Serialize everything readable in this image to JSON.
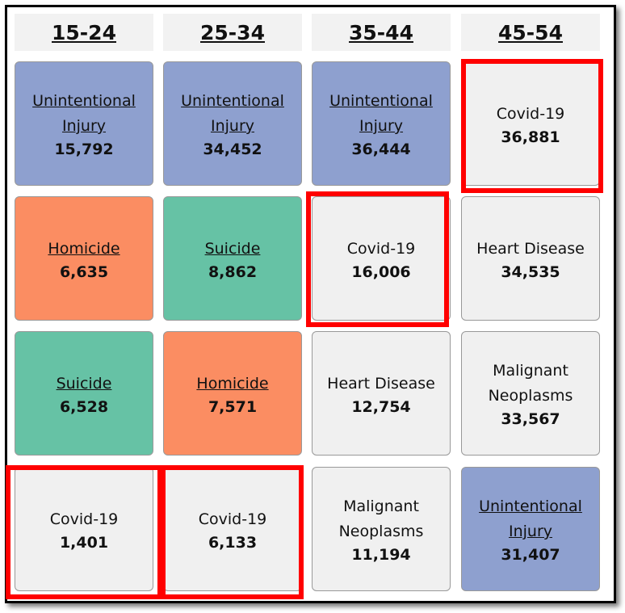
{
  "colors": {
    "Unintentional Injury": "#8ea0cf",
    "Homicide": "#fb8d62",
    "Suicide": "#66c2a5",
    "default": "#f0f0f0"
  },
  "chart_data": {
    "type": "table",
    "columns": [
      "15-24",
      "25-34",
      "35-44",
      "45-54"
    ],
    "rows": [
      [
        {
          "cause": "Unintentional Injury",
          "count": "15,792",
          "link": true,
          "highlight": false
        },
        {
          "cause": "Unintentional Injury",
          "count": "34,452",
          "link": true,
          "highlight": false
        },
        {
          "cause": "Unintentional Injury",
          "count": "36,444",
          "link": true,
          "highlight": false
        },
        {
          "cause": "Covid-19",
          "count": "36,881",
          "link": false,
          "highlight": true
        }
      ],
      [
        {
          "cause": "Homicide",
          "count": "6,635",
          "link": true,
          "highlight": false
        },
        {
          "cause": "Suicide",
          "count": "8,862",
          "link": true,
          "highlight": false
        },
        {
          "cause": "Covid-19",
          "count": "16,006",
          "link": false,
          "highlight": true
        },
        {
          "cause": "Heart Disease",
          "count": "34,535",
          "link": false,
          "highlight": false
        }
      ],
      [
        {
          "cause": "Suicide",
          "count": "6,528",
          "link": true,
          "highlight": false
        },
        {
          "cause": "Homicide",
          "count": "7,571",
          "link": true,
          "highlight": false
        },
        {
          "cause": "Heart Disease",
          "count": "12,754",
          "link": false,
          "highlight": false
        },
        {
          "cause": "Malignant Neoplasms",
          "count": "33,567",
          "link": false,
          "highlight": false
        }
      ],
      [
        {
          "cause": "Covid-19",
          "count": "1,401",
          "link": false,
          "highlight": true
        },
        {
          "cause": "Covid-19",
          "count": "6,133",
          "link": false,
          "highlight": true
        },
        {
          "cause": "Malignant Neoplasms",
          "count": "11,194",
          "link": false,
          "highlight": false
        },
        {
          "cause": "Unintentional Injury",
          "count": "31,407",
          "link": true,
          "highlight": false
        }
      ]
    ]
  }
}
